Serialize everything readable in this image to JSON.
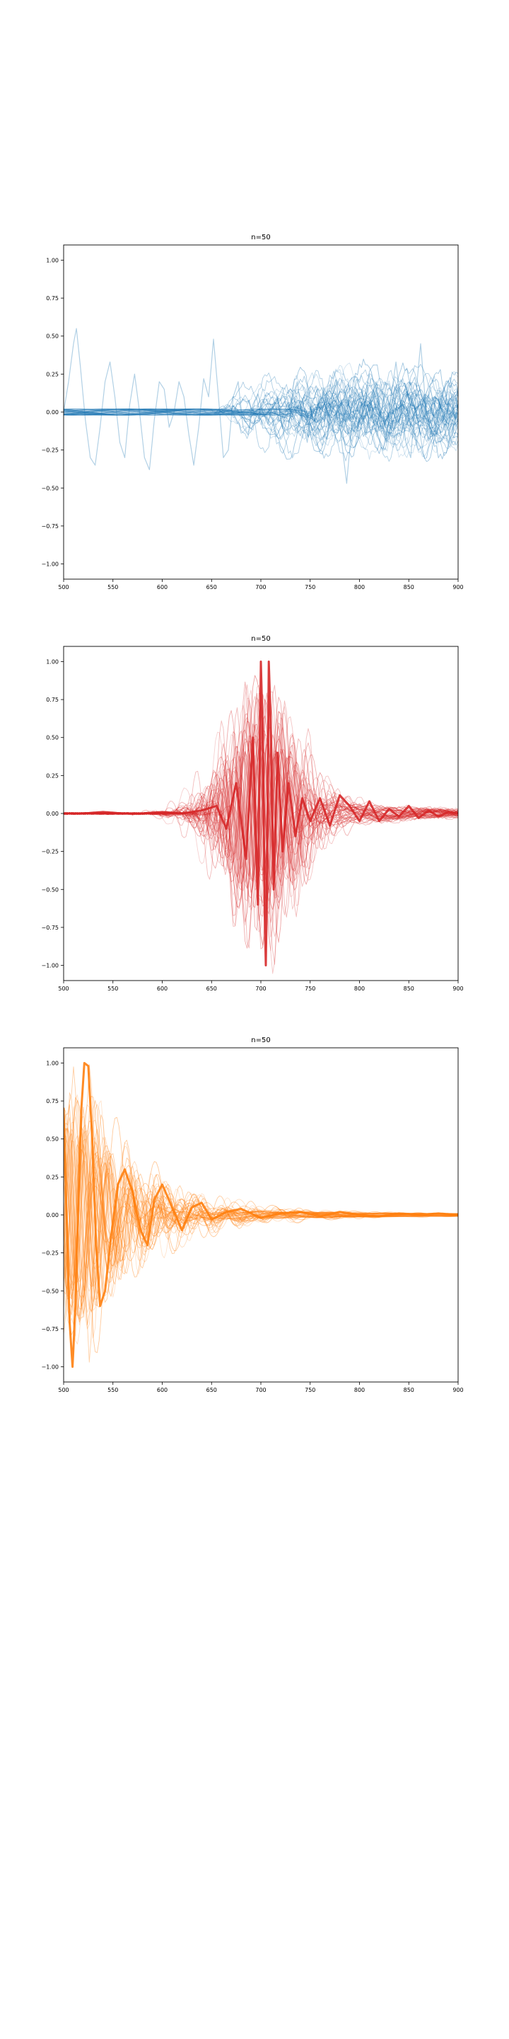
{
  "chart_data": [
    {
      "type": "line",
      "title": "n=50",
      "color": "#1f77b4",
      "n_traces": 50,
      "xlim": [
        500,
        900
      ],
      "ylim": [
        -1.1,
        1.1
      ],
      "x_ticks": [
        500,
        550,
        600,
        650,
        700,
        750,
        800,
        850,
        900
      ],
      "y_ticks": [
        -1.0,
        -0.75,
        -0.5,
        -0.25,
        0.0,
        0.25,
        0.5,
        0.75,
        1.0
      ],
      "x_tick_labels": [
        "500",
        "550",
        "600",
        "650",
        "700",
        "750",
        "800",
        "850",
        "900"
      ],
      "y_tick_labels": [
        "−1.00",
        "−0.75",
        "−0.50",
        "−0.25",
        "0.00",
        "0.25",
        "0.50",
        "0.75",
        "1.00"
      ],
      "grid": false,
      "description_of_series": "50 overlaid low-amplitude oscillating traces; most start near 700 and oscillate within about ±0.3; one trace spans 500–900 with peaks near 0.55 at x≈513 and 0.48 at x≈652",
      "representative_series": {
        "x": [
          500,
          505,
          510,
          513,
          517,
          522,
          527,
          532,
          537,
          542,
          547,
          552,
          557,
          562,
          567,
          572,
          577,
          582,
          587,
          592,
          597,
          602,
          607,
          612,
          617,
          622,
          627,
          632,
          637,
          642,
          647,
          652,
          657,
          662,
          667,
          672,
          677,
          682,
          687,
          692,
          697,
          702,
          707,
          712,
          717,
          722,
          727,
          732,
          737,
          742,
          747,
          752,
          757,
          762,
          767,
          772,
          777,
          782,
          787,
          792,
          797,
          802,
          807,
          812,
          817,
          822,
          827,
          832,
          837,
          842,
          847,
          852,
          857,
          862,
          867,
          872,
          877,
          882,
          887,
          892,
          897,
          900
        ],
        "y": [
          0.0,
          0.2,
          0.45,
          0.55,
          0.3,
          -0.05,
          -0.3,
          -0.35,
          -0.1,
          0.2,
          0.33,
          0.1,
          -0.2,
          -0.3,
          0.05,
          0.25,
          0.0,
          -0.3,
          -0.38,
          -0.05,
          0.2,
          0.15,
          -0.1,
          0.0,
          0.2,
          0.1,
          -0.15,
          -0.35,
          -0.1,
          0.22,
          0.1,
          0.48,
          0.1,
          -0.3,
          -0.25,
          0.1,
          0.2,
          -0.1,
          -0.15,
          0.05,
          0.12,
          0.0,
          -0.08,
          0.05,
          0.1,
          -0.1,
          -0.15,
          0.1,
          0.2,
          -0.05,
          -0.2,
          0.05,
          0.15,
          -0.1,
          -0.18,
          0.1,
          0.2,
          -0.2,
          -0.47,
          -0.1,
          0.15,
          0.05,
          -0.15,
          0.1,
          0.2,
          -0.05,
          -0.2,
          0.1,
          0.33,
          0.05,
          -0.2,
          -0.3,
          0.1,
          0.45,
          0.05,
          -0.15,
          0.1,
          0.05,
          -0.1,
          0.15,
          -0.05,
          0.0
        ]
      }
    },
    {
      "type": "line",
      "title": "n=50",
      "color": "#d62728",
      "n_traces": 50,
      "xlim": [
        500,
        900
      ],
      "ylim": [
        -1.1,
        1.1
      ],
      "x_ticks": [
        500,
        550,
        600,
        650,
        700,
        750,
        800,
        850,
        900
      ],
      "y_ticks": [
        -1.0,
        -0.75,
        -0.5,
        -0.25,
        0.0,
        0.25,
        0.5,
        0.75,
        1.0
      ],
      "x_tick_labels": [
        "500",
        "550",
        "600",
        "650",
        "700",
        "750",
        "800",
        "850",
        "900"
      ],
      "y_tick_labels": [
        "−1.00",
        "−0.75",
        "−0.50",
        "−0.25",
        "0.00",
        "0.25",
        "0.50",
        "0.75",
        "1.00"
      ],
      "grid": false,
      "description_of_series": "50 overlaid traces flat near 0 until about 650, a burst with a dominant swing to 1.00 near x≈701 and x≈708 and to −1.00 near x≈705, then decaying oscillations within about ±0.3 toward 900",
      "representative_series": {
        "x": [
          500,
          520,
          540,
          560,
          580,
          600,
          620,
          640,
          655,
          665,
          675,
          685,
          692,
          697,
          700,
          702,
          704,
          705,
          706,
          708,
          710,
          713,
          717,
          722,
          728,
          735,
          742,
          750,
          760,
          770,
          780,
          790,
          800,
          810,
          820,
          830,
          840,
          850,
          860,
          870,
          880,
          890,
          900
        ],
        "y": [
          0.0,
          0.0,
          0.01,
          0.0,
          0.0,
          0.01,
          0.0,
          0.02,
          0.05,
          -0.1,
          0.2,
          -0.3,
          0.5,
          -0.6,
          1.0,
          0.5,
          -0.7,
          -1.0,
          -0.6,
          1.0,
          0.6,
          -0.5,
          0.4,
          -0.25,
          0.2,
          -0.15,
          0.1,
          -0.05,
          0.1,
          -0.08,
          0.12,
          0.05,
          -0.05,
          0.08,
          -0.05,
          0.03,
          -0.02,
          0.05,
          -0.03,
          0.02,
          -0.02,
          0.01,
          0.0
        ]
      }
    },
    {
      "type": "line",
      "title": "n=50",
      "color": "#ff7f0e",
      "n_traces": 50,
      "xlim": [
        500,
        900
      ],
      "ylim": [
        -1.1,
        1.1
      ],
      "x_ticks": [
        500,
        550,
        600,
        650,
        700,
        750,
        800,
        850,
        900
      ],
      "y_ticks": [
        -1.0,
        -0.75,
        -0.5,
        -0.25,
        0.0,
        0.25,
        0.5,
        0.75,
        1.0
      ],
      "x_tick_labels": [
        "500",
        "550",
        "600",
        "650",
        "700",
        "750",
        "800",
        "850",
        "900"
      ],
      "y_tick_labels": [
        "−1.00",
        "−0.75",
        "−0.50",
        "−0.25",
        "0.00",
        "0.25",
        "0.50",
        "0.75",
        "1.00"
      ],
      "grid": false,
      "description_of_series": "50 overlaid traces with a large early oscillation: −1.00 near x≈509, 1.00 near x≈525, −1.00 near x≈520 for the bold trace, then decaying ringing that settles near 0 after about 650",
      "representative_series": {
        "x": [
          500,
          503,
          506,
          509,
          512,
          515,
          518,
          521,
          525,
          529,
          533,
          537,
          542,
          548,
          555,
          562,
          570,
          578,
          585,
          592,
          600,
          610,
          620,
          630,
          640,
          650,
          665,
          680,
          700,
          720,
          740,
          760,
          780,
          800,
          820,
          840,
          860,
          880,
          900
        ],
        "y": [
          0.7,
          0.0,
          -0.7,
          -1.0,
          -0.6,
          0.1,
          0.7,
          1.0,
          0.98,
          0.5,
          -0.2,
          -0.6,
          -0.5,
          -0.15,
          0.2,
          0.3,
          0.15,
          -0.1,
          -0.2,
          0.1,
          0.2,
          0.05,
          -0.1,
          0.05,
          0.08,
          -0.03,
          0.02,
          0.04,
          -0.02,
          0.01,
          0.02,
          -0.01,
          0.02,
          0.0,
          -0.01,
          0.01,
          0.0,
          0.01,
          0.0
        ]
      }
    }
  ]
}
